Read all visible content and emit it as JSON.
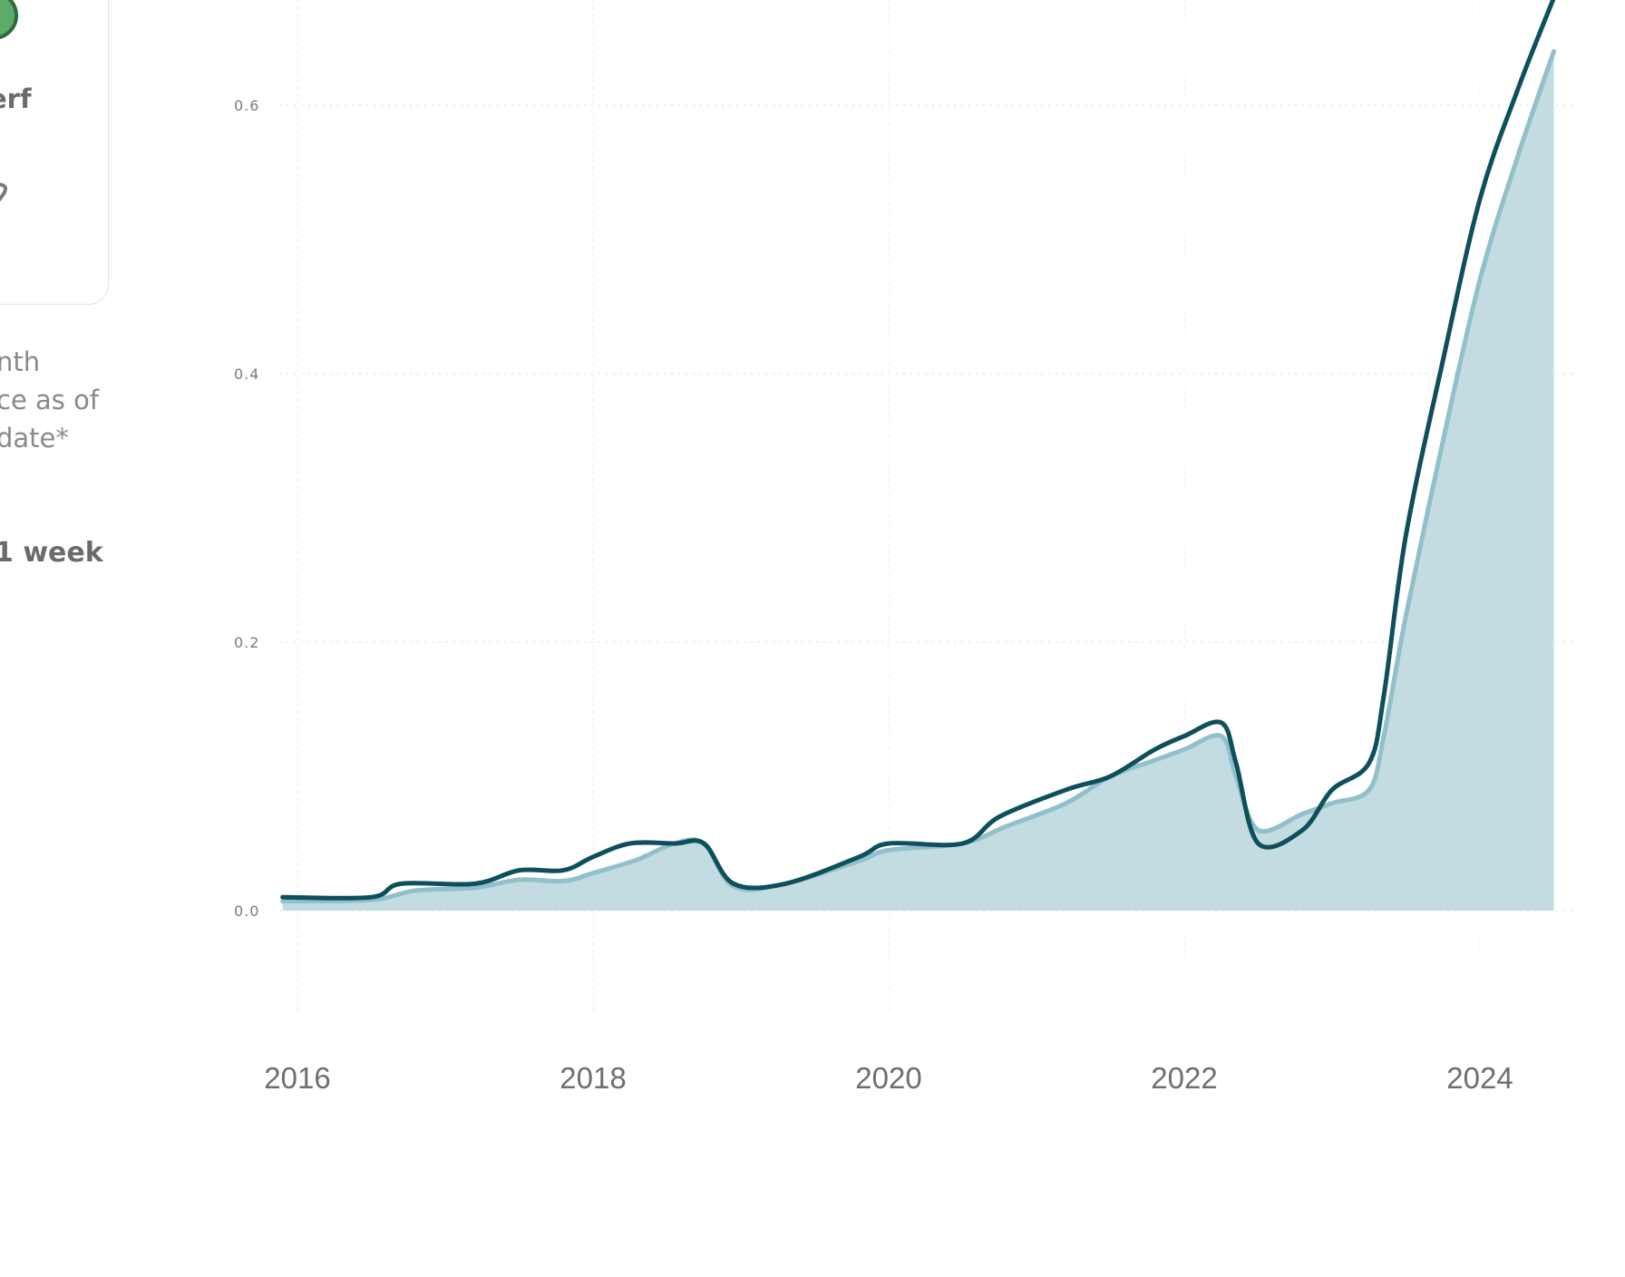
{
  "sidebar": {
    "card_label": "erf",
    "status_icon": "status-circle-icon",
    "secondary_icon": "pin-icon",
    "note_lines": [
      "nth",
      "ce as of",
      "date*"
    ],
    "period_label": "1 week"
  },
  "colors": {
    "line_primary": "#0d4f5c",
    "line_secondary": "#91bfca",
    "area_fill": "#c2dce1",
    "status_green": "#5cab6b"
  },
  "chart_data": {
    "type": "area",
    "title": "",
    "xlabel": "",
    "ylabel": "",
    "xlim": [
      2015.9,
      2024.5
    ],
    "ylim": [
      -0.1,
      0.68
    ],
    "x_ticks": [
      "2016",
      "2018",
      "2020",
      "2022",
      "2024"
    ],
    "y_ticks": [
      "0.0",
      "0.2",
      "0.4",
      "0.6"
    ],
    "grid": true,
    "series": [
      {
        "style": "line",
        "color": "#0d4f5c",
        "x": [
          2015.9,
          2016.5,
          2016.7,
          2017.2,
          2017.5,
          2017.8,
          2018.0,
          2018.25,
          2018.55,
          2018.75,
          2018.95,
          2019.3,
          2019.8,
          2020.0,
          2020.5,
          2020.75,
          2021.2,
          2021.5,
          2021.8,
          2022.0,
          2022.25,
          2022.35,
          2022.5,
          2022.8,
          2023.0,
          2023.25,
          2023.35,
          2023.5,
          2023.75,
          2024.0,
          2024.25,
          2024.5
        ],
        "y": [
          0.01,
          0.01,
          0.02,
          0.02,
          0.03,
          0.03,
          0.04,
          0.05,
          0.05,
          0.05,
          0.02,
          0.02,
          0.04,
          0.05,
          0.05,
          0.07,
          0.09,
          0.1,
          0.12,
          0.13,
          0.14,
          0.11,
          0.05,
          0.06,
          0.09,
          0.11,
          0.16,
          0.28,
          0.41,
          0.53,
          0.61,
          0.68
        ]
      },
      {
        "style": "area",
        "color": "#91bfca",
        "x": [
          2015.9,
          2016.5,
          2016.8,
          2017.2,
          2017.5,
          2017.8,
          2018.0,
          2018.3,
          2018.55,
          2018.75,
          2018.95,
          2019.3,
          2019.8,
          2020.0,
          2020.5,
          2020.8,
          2021.2,
          2021.5,
          2021.8,
          2022.0,
          2022.25,
          2022.35,
          2022.5,
          2022.8,
          2023.0,
          2023.25,
          2023.35,
          2023.5,
          2023.75,
          2024.0,
          2024.25,
          2024.5
        ],
        "y": [
          0.007,
          0.008,
          0.015,
          0.017,
          0.023,
          0.022,
          0.028,
          0.038,
          0.05,
          0.05,
          0.018,
          0.02,
          0.037,
          0.045,
          0.05,
          0.063,
          0.08,
          0.1,
          0.112,
          0.12,
          0.13,
          0.1,
          0.06,
          0.072,
          0.08,
          0.09,
          0.13,
          0.22,
          0.35,
          0.47,
          0.56,
          0.64
        ]
      }
    ]
  }
}
